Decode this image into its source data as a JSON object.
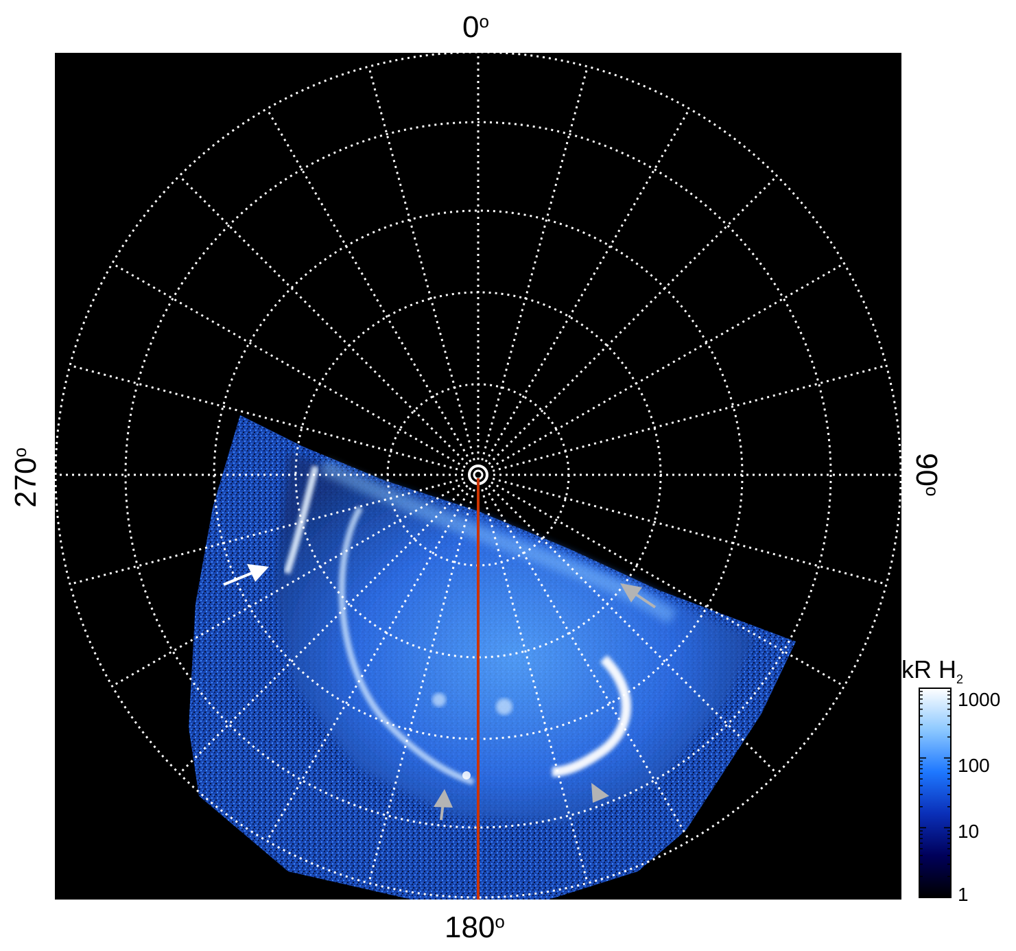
{
  "plot": {
    "longitude_labels": {
      "top": "0",
      "right": "90",
      "bottom": "180",
      "left": "270",
      "degree_symbol": "o"
    },
    "colorbar": {
      "title_main": "kR H",
      "title_sub": "2",
      "scale": "log",
      "tick_labels": [
        "1000",
        "100",
        "10",
        "1"
      ],
      "colors": [
        "#000000",
        "#00005a",
        "#0a2fb8",
        "#1e78ff",
        "#8cc8ff",
        "#ffffff"
      ]
    },
    "grid": {
      "style": "dotted",
      "color": "#ffffff"
    },
    "meridian_line_color": "#cc3300",
    "annotations": [
      {
        "name": "white-arrow",
        "color": "#ffffff"
      },
      {
        "name": "gray-arrow-right",
        "color": "#b4b4b4"
      },
      {
        "name": "gray-arrow-bottom-center",
        "color": "#b4b4b4"
      },
      {
        "name": "gray-arrow-bottom-right",
        "color": "#b4b4b4"
      }
    ]
  }
}
